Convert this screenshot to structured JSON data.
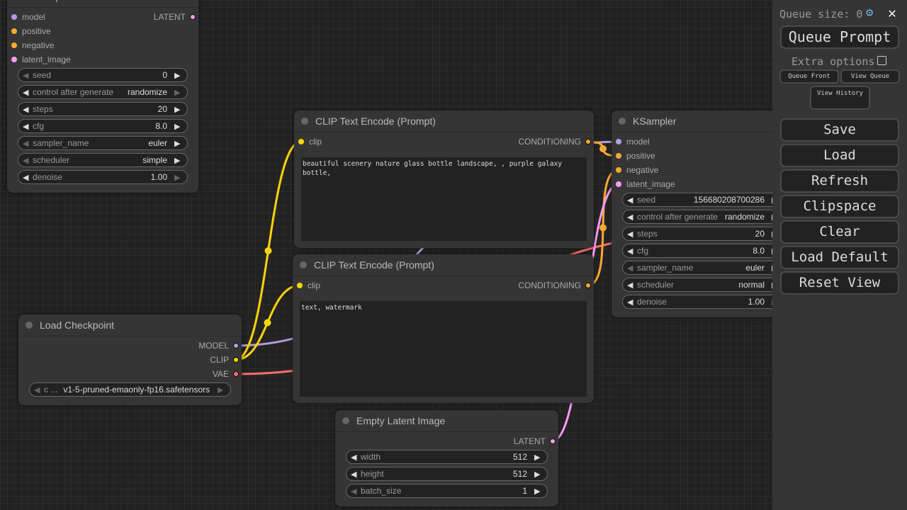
{
  "colors": {
    "MODEL": "#b39ddb",
    "CLIP": "#ffd500",
    "VAE": "#ff6e6e",
    "CONDITIONING": "#ffa931",
    "LATENT": "#ff9cf9"
  },
  "nodes": [
    {
      "id": "ksampler-top",
      "title": "KSampler",
      "inputs": [
        {
          "label": "model",
          "type": "MODEL"
        },
        {
          "label": "positive",
          "type": "CONDITIONING"
        },
        {
          "label": "negative",
          "type": "CONDITIONING"
        },
        {
          "label": "latent_image",
          "type": "LATENT"
        }
      ],
      "outputs": [
        {
          "label": "LATENT",
          "type": "LATENT"
        }
      ],
      "widgets": [
        {
          "label": "seed",
          "value": "0",
          "left": false,
          "right": true
        },
        {
          "label": "control after generate",
          "value": "randomize",
          "left": true,
          "right": false
        },
        {
          "label": "steps",
          "value": "20",
          "left": true,
          "right": true
        },
        {
          "label": "cfg",
          "value": "8.0",
          "left": true,
          "right": true
        },
        {
          "label": "sampler_name",
          "value": "euler",
          "left": false,
          "right": true
        },
        {
          "label": "scheduler",
          "value": "simple",
          "left": false,
          "right": true
        },
        {
          "label": "denoise",
          "value": "1.00",
          "left": true,
          "right": false
        }
      ]
    },
    {
      "id": "clip-positive",
      "title": "CLIP Text Encode (Prompt)",
      "inputs": [
        {
          "label": "clip",
          "type": "CLIP"
        }
      ],
      "outputs": [
        {
          "label": "CONDITIONING",
          "type": "CONDITIONING"
        }
      ],
      "text": "beautiful scenery nature glass bottle landscape, , purple galaxy bottle,"
    },
    {
      "id": "clip-negative",
      "title": "CLIP Text Encode (Prompt)",
      "inputs": [
        {
          "label": "clip",
          "type": "CLIP"
        }
      ],
      "outputs": [
        {
          "label": "CONDITIONING",
          "type": "CONDITIONING"
        }
      ],
      "text": "text, watermark"
    },
    {
      "id": "load-checkpoint",
      "title": "Load Checkpoint",
      "inputs": [],
      "outputs": [
        {
          "label": "MODEL",
          "type": "MODEL"
        },
        {
          "label": "CLIP",
          "type": "CLIP"
        },
        {
          "label": "VAE",
          "type": "VAE"
        }
      ],
      "widgets": [
        {
          "label": "c ...",
          "value": "v1-5-pruned-emaonly-fp16.safetensors",
          "left": false,
          "right": false
        }
      ]
    },
    {
      "id": "empty-latent",
      "title": "Empty Latent Image",
      "inputs": [],
      "outputs": [
        {
          "label": "LATENT",
          "type": "LATENT"
        }
      ],
      "widgets": [
        {
          "label": "width",
          "value": "512",
          "left": true,
          "right": true
        },
        {
          "label": "height",
          "value": "512",
          "left": true,
          "right": true
        },
        {
          "label": "batch_size",
          "value": "1",
          "left": false,
          "right": true
        }
      ]
    },
    {
      "id": "ksampler",
      "title": "KSampler",
      "inputs": [
        {
          "label": "model",
          "type": "MODEL"
        },
        {
          "label": "positive",
          "type": "CONDITIONING"
        },
        {
          "label": "negative",
          "type": "CONDITIONING"
        },
        {
          "label": "latent_image",
          "type": "LATENT"
        }
      ],
      "outputs": [],
      "widgets": [
        {
          "label": "seed",
          "value": "156680208700286",
          "left": true,
          "right": true
        },
        {
          "label": "control after generate",
          "value": "randomize",
          "left": true,
          "right": true
        },
        {
          "label": "steps",
          "value": "20",
          "left": true,
          "right": true
        },
        {
          "label": "cfg",
          "value": "8.0",
          "left": true,
          "right": true
        },
        {
          "label": "sampler_name",
          "value": "euler",
          "left": false,
          "right": true
        },
        {
          "label": "scheduler",
          "value": "normal",
          "left": true,
          "right": true
        },
        {
          "label": "denoise",
          "value": "1.00",
          "left": true,
          "right": false
        }
      ]
    }
  ],
  "sidebar": {
    "queue_size_label": "Queue size: 0",
    "settings_icon": "gear-icon",
    "close_icon": "close-icon",
    "queue_prompt": "Queue Prompt",
    "extra_options": "Extra options",
    "extra_options_checked": false,
    "queue_front": "Queue Front",
    "view_queue": "View Queue",
    "view_history": "View History",
    "buttons": [
      "Save",
      "Load",
      "Refresh",
      "Clipspace",
      "Clear",
      "Load Default",
      "Reset View"
    ]
  }
}
